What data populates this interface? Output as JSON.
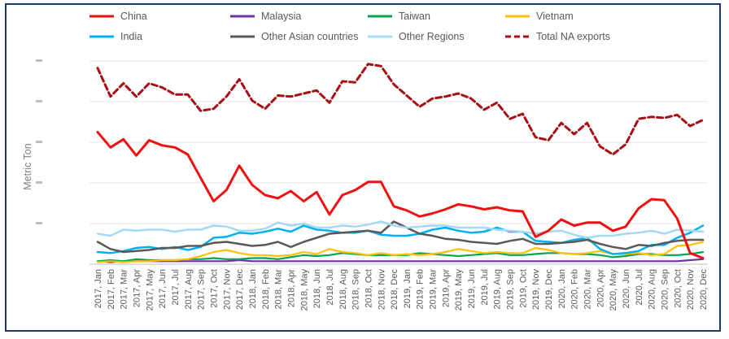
{
  "chart_data": {
    "type": "line",
    "ylabel": "Metric Ton",
    "x": [
      "2017, Jan",
      "2017, Feb",
      "2017, Mar",
      "2017, Apr",
      "2017, May",
      "2017, Jun",
      "2017, Jul",
      "2017, Aug",
      "2017, Sep",
      "2017, Oct",
      "2017, Nov",
      "2017, Dec",
      "2018, Jan",
      "2018, Feb",
      "2018, Mar",
      "2018, Apr",
      "2018, May",
      "2018, Jun",
      "2018, Jul",
      "2018, Aug",
      "2018, Sep",
      "2018, Oct",
      "2018, Nov",
      "2018, Dec",
      "2019, Jan",
      "2019, Feb",
      "2019, Mar",
      "2019, Apr",
      "2019, May",
      "2019, Jun",
      "2019, Jul",
      "2019, Aug",
      "2019, Sep",
      "2019, Oct",
      "2019, Nov",
      "2019, Dec",
      "2020, Jan",
      "2020, Feb",
      "2020, Mar",
      "2020, Apr",
      "2020, May",
      "2020, Jun",
      "2020, Jul",
      "2020, Aug",
      "2020, Sep",
      "2020, Oct",
      "2020, Nov",
      "2020, Dec"
    ],
    "yrange": [
      0,
      20
    ],
    "gridlines": true,
    "legend_position": "top",
    "series": [
      {
        "name": "China",
        "color": "#ee1111",
        "dash": "",
        "width": 3,
        "values": [
          13,
          11.5,
          12.3,
          10.7,
          12.2,
          11.7,
          11.5,
          10.8,
          8.5,
          6.2,
          7.3,
          9.7,
          7.8,
          6.8,
          6.5,
          7.2,
          6.2,
          7.1,
          4.9,
          6.8,
          7.3,
          8.1,
          8.1,
          5.7,
          5.3,
          4.7,
          5,
          5.4,
          5.9,
          5.7,
          5.4,
          5.6,
          5.3,
          5.2,
          2.7,
          3.3,
          4.4,
          3.8,
          4.1,
          4.1,
          3.3,
          3.7,
          5.5,
          6.4,
          6.3,
          4.5,
          1.1,
          0.6
        ]
      },
      {
        "name": "Malaysia",
        "color": "#7030a0",
        "dash": "",
        "width": 2.2,
        "values": [
          0.3,
          0.2,
          0.3,
          0.3,
          0.3,
          0.3,
          0.3,
          0.3,
          0.3,
          0.3,
          0.3,
          0.4,
          0.3,
          0.3,
          0.3,
          0.3,
          0.3,
          0.3,
          0.3,
          0.3,
          0.3,
          0.3,
          0.3,
          0.3,
          0.3,
          0.3,
          0.3,
          0.3,
          0.3,
          0.3,
          0.3,
          0.3,
          0.3,
          0.3,
          0.3,
          0.3,
          0.3,
          0.3,
          0.3,
          0.3,
          0.3,
          0.3,
          0.3,
          0.3,
          0.3,
          0.3,
          0.4,
          0.5
        ]
      },
      {
        "name": "Taiwan",
        "color": "#00a650",
        "dash": "",
        "width": 2.2,
        "values": [
          0.3,
          0.4,
          0.3,
          0.5,
          0.4,
          0.4,
          0.4,
          0.5,
          0.5,
          0.6,
          0.5,
          0.5,
          0.6,
          0.6,
          0.5,
          0.7,
          0.9,
          0.8,
          0.9,
          1.1,
          1,
          0.9,
          0.9,
          0.9,
          0.9,
          1.1,
          1,
          0.9,
          0.8,
          0.9,
          1,
          1.1,
          0.9,
          0.9,
          1,
          1.1,
          1.1,
          1,
          1,
          0.9,
          0.7,
          0.8,
          1,
          1,
          0.9,
          0.9,
          1,
          1.2
        ]
      },
      {
        "name": "Vietnam",
        "color": "#ffc000",
        "dash": "",
        "width": 2.2,
        "values": [
          0.2,
          0.3,
          0.2,
          0.3,
          0.3,
          0.4,
          0.4,
          0.5,
          0.8,
          1.2,
          1.4,
          1.1,
          0.9,
          0.9,
          0.8,
          0.9,
          1.2,
          1,
          1.5,
          1.2,
          1.1,
          0.9,
          1.1,
          0.9,
          1,
          0.9,
          1,
          1.2,
          1.5,
          1.3,
          1.1,
          1.2,
          1.1,
          1.1,
          1.6,
          1.4,
          1.1,
          1,
          1.1,
          1.3,
          1,
          1,
          1.1,
          0.9,
          1,
          1.8,
          1.9,
          2.2
        ]
      },
      {
        "name": "India",
        "color": "#00b0f0",
        "dash": "",
        "width": 2.5,
        "values": [
          1.2,
          1.1,
          1.3,
          1.6,
          1.7,
          1.5,
          1.7,
          1.4,
          1.7,
          2.6,
          2.7,
          3.1,
          3,
          3.2,
          3.5,
          3.2,
          3.8,
          3.4,
          3.3,
          3.1,
          3.1,
          3.3,
          2.9,
          2.8,
          2.8,
          3,
          3.4,
          3.6,
          3.3,
          3.1,
          3.2,
          3.6,
          3.2,
          3.2,
          2.3,
          2.2,
          2.1,
          2.4,
          2.6,
          1.5,
          1,
          1.1,
          1.3,
          1.9,
          1.9,
          2.6,
          3.1,
          3.8
        ]
      },
      {
        "name": "Other Asian countries",
        "color": "#595959",
        "dash": "",
        "width": 2.5,
        "values": [
          2.2,
          1.5,
          1.2,
          1.3,
          1.4,
          1.6,
          1.6,
          1.8,
          1.8,
          2.1,
          2.2,
          2,
          1.8,
          1.9,
          2.2,
          1.7,
          2.2,
          2.6,
          3,
          3.1,
          3.2,
          3.3,
          3.1,
          4.2,
          3.6,
          3,
          2.8,
          2.5,
          2.4,
          2.2,
          2.1,
          2,
          2.3,
          2.5,
          2,
          2,
          2.1,
          2.2,
          2.4,
          2,
          1.7,
          1.5,
          1.9,
          1.8,
          2.1,
          2.3,
          2.4,
          2.4
        ]
      },
      {
        "name": "Other Regions",
        "color": "#a5d9f2",
        "dash": "",
        "width": 2.5,
        "values": [
          3,
          2.8,
          3.4,
          3.3,
          3.4,
          3.4,
          3.2,
          3.4,
          3.4,
          3.8,
          3.7,
          3.3,
          3.3,
          3.5,
          4.1,
          3.8,
          4,
          3.6,
          3.6,
          3.8,
          3.7,
          3.9,
          4.2,
          3.8,
          3.6,
          3.7,
          3.8,
          3.8,
          3.6,
          3.6,
          3.6,
          3.4,
          3.3,
          3.2,
          3,
          3.2,
          3.3,
          2.9,
          2.6,
          2.8,
          2.8,
          3,
          3.1,
          3.3,
          3,
          3.4,
          3.3,
          3.2
        ]
      },
      {
        "name": "Total NA exports",
        "color": "#a50f15",
        "dash": "7,4",
        "width": 3,
        "values": [
          19.3,
          16.5,
          17.8,
          16.5,
          17.8,
          17.4,
          16.7,
          16.7,
          15.1,
          15.3,
          16.5,
          18.2,
          16.1,
          15.3,
          16.6,
          16.5,
          16.8,
          17.1,
          15.9,
          18,
          17.9,
          19.7,
          19.5,
          17.7,
          16.6,
          15.5,
          16.3,
          16.5,
          16.8,
          16.3,
          15.2,
          15.9,
          14.3,
          14.8,
          12.5,
          12.2,
          13.9,
          12.8,
          13.9,
          11.6,
          10.8,
          11.8,
          14.3,
          14.5,
          14.4,
          14.7,
          13.6,
          14.2
        ]
      }
    ]
  }
}
